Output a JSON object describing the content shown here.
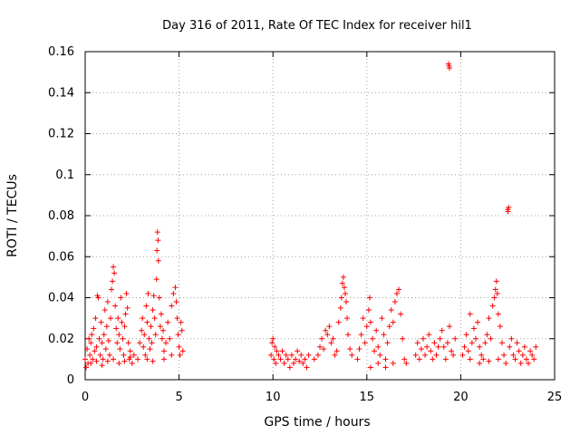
{
  "chart_data": {
    "type": "scatter",
    "title": "Day 316 of 2011, Rate Of TEC Index for receiver hil1",
    "xlabel": "GPS time / hours",
    "ylabel": "ROTI / TECUs",
    "xlim": [
      0,
      25
    ],
    "ylim": [
      0,
      0.16
    ],
    "xticks": [
      0,
      5,
      10,
      15,
      20,
      25
    ],
    "xtick_labels": [
      "0",
      "5",
      "10",
      "15",
      "20",
      "25"
    ],
    "yticks": [
      0,
      0.02,
      0.04,
      0.06,
      0.08,
      0.1,
      0.12,
      0.14,
      0.16
    ],
    "ytick_labels": [
      "0",
      "0.02",
      "0.04",
      "0.06",
      "0.08",
      "0.1",
      "0.12",
      "0.14",
      "0.16"
    ],
    "grid": true,
    "marker": "+",
    "color": "#ff0000",
    "series": [
      {
        "name": "ROTI",
        "points": [
          [
            0.0,
            0.01
          ],
          [
            0.1,
            0.015
          ],
          [
            0.15,
            0.008
          ],
          [
            0.2,
            0.02
          ],
          [
            0.25,
            0.012
          ],
          [
            0.3,
            0.018
          ],
          [
            0.35,
            0.022
          ],
          [
            0.4,
            0.01
          ],
          [
            0.45,
            0.025
          ],
          [
            0.5,
            0.014
          ],
          [
            0.55,
            0.03
          ],
          [
            0.6,
            0.016
          ],
          [
            0.65,
            0.041
          ],
          [
            0.7,
            0.04
          ],
          [
            0.75,
            0.02
          ],
          [
            0.8,
            0.012
          ],
          [
            0.85,
            0.028
          ],
          [
            0.9,
            0.018
          ],
          [
            0.95,
            0.01
          ],
          [
            1.0,
            0.022
          ],
          [
            1.05,
            0.034
          ],
          [
            1.1,
            0.015
          ],
          [
            1.15,
            0.026
          ],
          [
            1.2,
            0.038
          ],
          [
            1.25,
            0.019
          ],
          [
            1.3,
            0.012
          ],
          [
            1.35,
            0.03
          ],
          [
            1.4,
            0.044
          ],
          [
            1.45,
            0.048
          ],
          [
            1.5,
            0.055
          ],
          [
            1.55,
            0.052
          ],
          [
            1.6,
            0.036
          ],
          [
            1.65,
            0.025
          ],
          [
            1.7,
            0.018
          ],
          [
            1.75,
            0.03
          ],
          [
            1.8,
            0.022
          ],
          [
            1.85,
            0.015
          ],
          [
            1.9,
            0.04
          ],
          [
            1.95,
            0.028
          ],
          [
            2.0,
            0.02
          ],
          [
            2.05,
            0.012
          ],
          [
            2.1,
            0.026
          ],
          [
            2.15,
            0.032
          ],
          [
            2.2,
            0.042
          ],
          [
            2.25,
            0.035
          ],
          [
            2.3,
            0.018
          ],
          [
            2.35,
            0.01
          ],
          [
            2.4,
            0.014
          ],
          [
            2.5,
            0.008
          ],
          [
            2.6,
            0.012
          ],
          [
            2.8,
            0.01
          ],
          [
            2.9,
            0.018
          ],
          [
            3.0,
            0.024
          ],
          [
            3.05,
            0.03
          ],
          [
            3.1,
            0.016
          ],
          [
            3.15,
            0.022
          ],
          [
            3.2,
            0.012
          ],
          [
            3.25,
            0.036
          ],
          [
            3.3,
            0.028
          ],
          [
            3.35,
            0.042
          ],
          [
            3.4,
            0.02
          ],
          [
            3.45,
            0.015
          ],
          [
            3.5,
            0.026
          ],
          [
            3.55,
            0.018
          ],
          [
            3.6,
            0.034
          ],
          [
            3.65,
            0.041
          ],
          [
            3.7,
            0.03
          ],
          [
            3.75,
            0.022
          ],
          [
            3.8,
            0.049
          ],
          [
            3.82,
            0.063
          ],
          [
            3.85,
            0.072
          ],
          [
            3.88,
            0.068
          ],
          [
            3.9,
            0.058
          ],
          [
            3.95,
            0.04
          ],
          [
            4.0,
            0.026
          ],
          [
            4.05,
            0.032
          ],
          [
            4.1,
            0.02
          ],
          [
            4.15,
            0.024
          ],
          [
            4.2,
            0.014
          ],
          [
            4.3,
            0.018
          ],
          [
            4.4,
            0.028
          ],
          [
            4.5,
            0.02
          ],
          [
            4.6,
            0.036
          ],
          [
            4.7,
            0.042
          ],
          [
            4.8,
            0.045
          ],
          [
            4.85,
            0.038
          ],
          [
            4.9,
            0.03
          ],
          [
            4.95,
            0.022
          ],
          [
            5.0,
            0.016
          ],
          [
            5.05,
            0.012
          ],
          [
            5.1,
            0.028
          ],
          [
            5.15,
            0.024
          ],
          [
            5.2,
            0.014
          ],
          [
            0.05,
            0.006
          ],
          [
            0.3,
            0.008
          ],
          [
            0.6,
            0.009
          ],
          [
            0.9,
            0.007
          ],
          [
            1.2,
            0.009
          ],
          [
            1.5,
            0.01
          ],
          [
            1.8,
            0.008
          ],
          [
            2.1,
            0.009
          ],
          [
            2.4,
            0.011
          ],
          [
            3.3,
            0.01
          ],
          [
            3.6,
            0.009
          ],
          [
            4.2,
            0.01
          ],
          [
            4.6,
            0.012
          ],
          [
            9.9,
            0.012
          ],
          [
            9.95,
            0.018
          ],
          [
            10.0,
            0.02
          ],
          [
            10.05,
            0.01
          ],
          [
            10.1,
            0.016
          ],
          [
            10.15,
            0.008
          ],
          [
            10.2,
            0.014
          ],
          [
            10.3,
            0.012
          ],
          [
            10.4,
            0.01
          ],
          [
            10.5,
            0.014
          ],
          [
            10.6,
            0.008
          ],
          [
            10.7,
            0.012
          ],
          [
            10.8,
            0.01
          ],
          [
            10.9,
            0.006
          ],
          [
            11.0,
            0.012
          ],
          [
            11.1,
            0.008
          ],
          [
            11.2,
            0.01
          ],
          [
            11.3,
            0.014
          ],
          [
            11.4,
            0.009
          ],
          [
            11.5,
            0.012
          ],
          [
            11.6,
            0.008
          ],
          [
            11.7,
            0.01
          ],
          [
            11.8,
            0.006
          ],
          [
            11.9,
            0.012
          ],
          [
            12.2,
            0.01
          ],
          [
            12.4,
            0.012
          ],
          [
            12.5,
            0.016
          ],
          [
            12.6,
            0.02
          ],
          [
            12.7,
            0.015
          ],
          [
            12.8,
            0.024
          ],
          [
            12.9,
            0.022
          ],
          [
            13.0,
            0.026
          ],
          [
            13.1,
            0.018
          ],
          [
            13.2,
            0.02
          ],
          [
            13.3,
            0.012
          ],
          [
            13.4,
            0.014
          ],
          [
            13.5,
            0.028
          ],
          [
            13.6,
            0.035
          ],
          [
            13.65,
            0.04
          ],
          [
            13.7,
            0.047
          ],
          [
            13.75,
            0.05
          ],
          [
            13.8,
            0.045
          ],
          [
            13.85,
            0.042
          ],
          [
            13.9,
            0.038
          ],
          [
            13.95,
            0.03
          ],
          [
            14.0,
            0.022
          ],
          [
            14.1,
            0.015
          ],
          [
            14.2,
            0.012
          ],
          [
            14.5,
            0.01
          ],
          [
            14.6,
            0.015
          ],
          [
            14.7,
            0.022
          ],
          [
            14.8,
            0.03
          ],
          [
            14.9,
            0.018
          ],
          [
            15.0,
            0.026
          ],
          [
            15.1,
            0.034
          ],
          [
            15.15,
            0.04
          ],
          [
            15.2,
            0.028
          ],
          [
            15.3,
            0.02
          ],
          [
            15.4,
            0.014
          ],
          [
            15.5,
            0.024
          ],
          [
            15.6,
            0.016
          ],
          [
            15.7,
            0.012
          ],
          [
            15.8,
            0.03
          ],
          [
            15.9,
            0.022
          ],
          [
            16.0,
            0.01
          ],
          [
            16.1,
            0.018
          ],
          [
            16.2,
            0.026
          ],
          [
            16.3,
            0.034
          ],
          [
            16.4,
            0.028
          ],
          [
            16.5,
            0.038
          ],
          [
            16.6,
            0.042
          ],
          [
            16.7,
            0.044
          ],
          [
            16.8,
            0.032
          ],
          [
            16.9,
            0.02
          ],
          [
            17.0,
            0.01
          ],
          [
            17.1,
            0.008
          ],
          [
            15.2,
            0.006
          ],
          [
            15.6,
            0.008
          ],
          [
            16.0,
            0.006
          ],
          [
            16.4,
            0.008
          ],
          [
            17.6,
            0.012
          ],
          [
            17.7,
            0.018
          ],
          [
            17.8,
            0.01
          ],
          [
            17.9,
            0.015
          ],
          [
            18.0,
            0.02
          ],
          [
            18.1,
            0.012
          ],
          [
            18.2,
            0.016
          ],
          [
            18.3,
            0.022
          ],
          [
            18.4,
            0.014
          ],
          [
            18.5,
            0.01
          ],
          [
            18.6,
            0.018
          ],
          [
            18.7,
            0.012
          ],
          [
            18.8,
            0.016
          ],
          [
            18.9,
            0.02
          ],
          [
            19.0,
            0.024
          ],
          [
            19.1,
            0.016
          ],
          [
            19.2,
            0.01
          ],
          [
            19.3,
            0.018
          ],
          [
            19.4,
            0.026
          ],
          [
            19.5,
            0.014
          ],
          [
            19.6,
            0.012
          ],
          [
            19.7,
            0.02
          ],
          [
            19.35,
            0.154
          ],
          [
            19.4,
            0.152
          ],
          [
            19.38,
            0.153
          ],
          [
            20.1,
            0.012
          ],
          [
            20.2,
            0.016
          ],
          [
            20.3,
            0.022
          ],
          [
            20.4,
            0.014
          ],
          [
            20.5,
            0.01
          ],
          [
            20.6,
            0.018
          ],
          [
            20.7,
            0.025
          ],
          [
            20.8,
            0.02
          ],
          [
            20.9,
            0.028
          ],
          [
            21.0,
            0.016
          ],
          [
            21.1,
            0.012
          ],
          [
            21.2,
            0.01
          ],
          [
            21.3,
            0.018
          ],
          [
            21.4,
            0.022
          ],
          [
            21.5,
            0.03
          ],
          [
            21.6,
            0.02
          ],
          [
            21.7,
            0.036
          ],
          [
            21.8,
            0.04
          ],
          [
            21.85,
            0.044
          ],
          [
            21.9,
            0.048
          ],
          [
            21.95,
            0.042
          ],
          [
            22.0,
            0.032
          ],
          [
            22.1,
            0.026
          ],
          [
            22.2,
            0.018
          ],
          [
            22.3,
            0.012
          ],
          [
            22.4,
            0.008
          ],
          [
            22.5,
            0.083
          ],
          [
            22.52,
            0.082
          ],
          [
            22.55,
            0.084
          ],
          [
            22.6,
            0.016
          ],
          [
            22.7,
            0.02
          ],
          [
            22.8,
            0.012
          ],
          [
            22.9,
            0.01
          ],
          [
            23.0,
            0.018
          ],
          [
            23.1,
            0.014
          ],
          [
            23.2,
            0.008
          ],
          [
            23.3,
            0.012
          ],
          [
            23.4,
            0.016
          ],
          [
            23.5,
            0.01
          ],
          [
            23.6,
            0.008
          ],
          [
            23.7,
            0.014
          ],
          [
            23.8,
            0.012
          ],
          [
            23.9,
            0.01
          ],
          [
            24.0,
            0.016
          ],
          [
            20.5,
            0.032
          ],
          [
            21.0,
            0.008
          ],
          [
            21.5,
            0.009
          ],
          [
            22.0,
            0.01
          ]
        ]
      }
    ]
  }
}
